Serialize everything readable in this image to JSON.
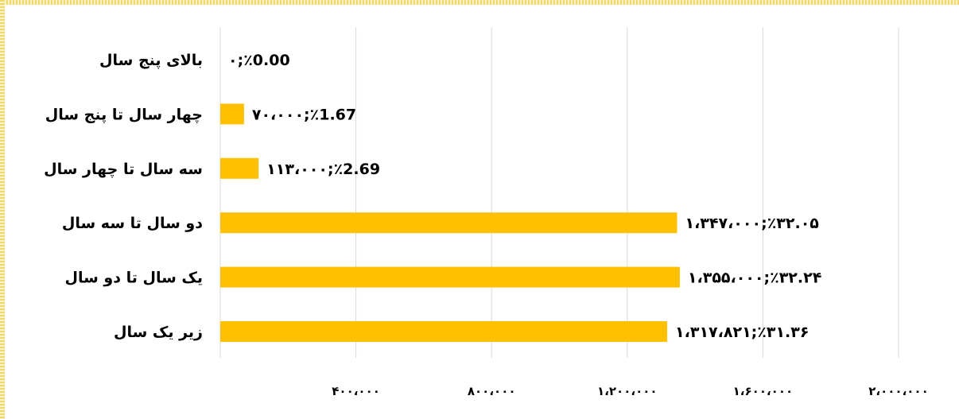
{
  "chart_data": {
    "type": "bar",
    "orientation": "horizontal",
    "title": "",
    "xlabel": "",
    "ylabel": "",
    "xlim": [
      0,
      2000000
    ],
    "grid": true,
    "legend": "none",
    "bar_color": "#ffc000",
    "categories": [
      "زیر یک سال",
      "یک سال تا دو سال",
      "دو سال تا سه سال",
      "سه سال تا چهار سال",
      "چهار سال تا پنج سال",
      "بالای پنج سال"
    ],
    "values": [
      1317821,
      1355000,
      1347000,
      113000,
      70000,
      0
    ],
    "data_labels": [
      "۱،۳۱۷،۸۲۱;٪۳۱.۳۶",
      "۱،۳۵۵،۰۰۰;٪۳۲.۲۴",
      "۱،۳۴۷،۰۰۰;٪۳۲.۰۵",
      "۱۱۳،۰۰۰;٪2.69",
      "۷۰،۰۰۰;٪1.67",
      "۰;٪0.00"
    ],
    "ticks": [
      400000,
      800000,
      1200000,
      1600000,
      2000000
    ],
    "tick_labels": [
      "۴۰۰،۰۰۰",
      "۸۰۰،۰۰۰",
      "۱،۲۰۰،۰۰۰",
      "۱،۶۰۰،۰۰۰",
      "۲،۰۰۰،۰۰۰"
    ]
  }
}
